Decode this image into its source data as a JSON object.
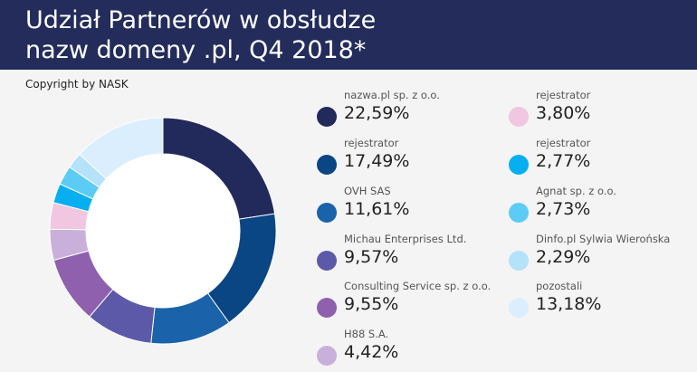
{
  "header": {
    "title_line1": "Udział Partnerów w obsłudze",
    "title_line2": "nazw domeny .pl, Q4 2018*"
  },
  "copyright": "Copyright by NASK",
  "chart_data": {
    "type": "pie",
    "title": "Udział Partnerów w obsłudze nazw domeny .pl, Q4 2018*",
    "categories": [
      "nazwa.pl sp. z o.o.",
      "rejestrator",
      "OVH SAS",
      "Michau Enterprises Ltd.",
      "Consulting Service sp. z o.o.",
      "H88 S.A.",
      "rejestrator",
      "rejestrator",
      "Agnat sp. z o.o.",
      "Dinfo.pl Sylwia Wierońska",
      "pozostali"
    ],
    "values": [
      22.59,
      17.49,
      11.61,
      9.57,
      9.55,
      4.42,
      3.8,
      2.77,
      2.73,
      2.29,
      13.18
    ],
    "labels": [
      "22,59%",
      "17,49%",
      "11,61%",
      "9,57%",
      "9,55%",
      "4,42%",
      "3,80%",
      "2,77%",
      "2,73%",
      "2,29%",
      "13,18%"
    ],
    "colors": [
      "#222a5c",
      "#0a4584",
      "#1a63aa",
      "#5c5aa8",
      "#8e60ae",
      "#c9b0da",
      "#f0c6e0",
      "#08aff0",
      "#5cccf6",
      "#b4e2fa",
      "#daeefd"
    ],
    "donut": true,
    "legend_position": "right"
  }
}
